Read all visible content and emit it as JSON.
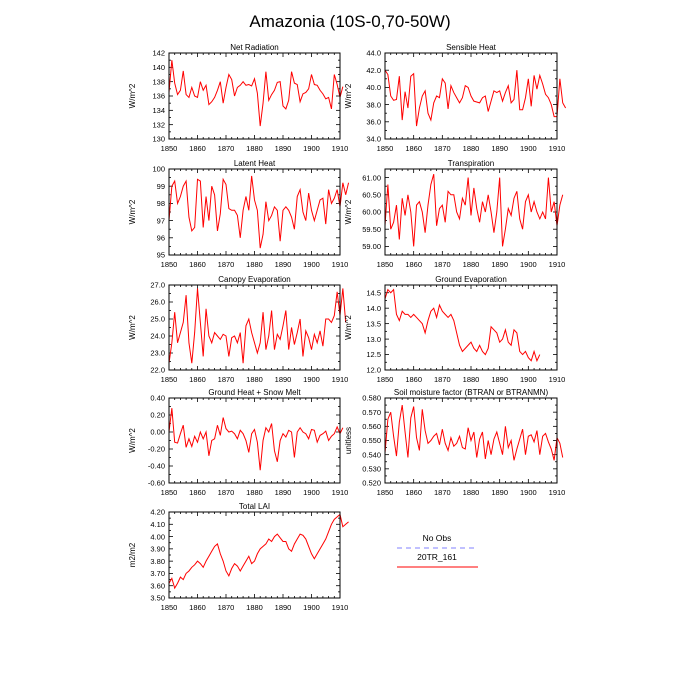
{
  "title": "Amazonia (10S-0,70-50W)",
  "legend": {
    "entries": [
      {
        "label": "No Obs",
        "color": "#8080ff",
        "style": "dashed"
      },
      {
        "label": "20TR_161",
        "color": "#ff0000",
        "style": "solid"
      }
    ]
  },
  "colors": {
    "model": "#ff0000",
    "obs": "#8080ff"
  },
  "chart_data": [
    {
      "type": "line",
      "title": "Net Radiation",
      "ylabel": "W/m^2",
      "xlim": [
        1850,
        1910
      ],
      "ylim": [
        130,
        142
      ],
      "xticks": [
        "1850",
        "1860",
        "1870",
        "1880",
        "1890",
        "1900",
        "1910"
      ],
      "yticks": [
        "130",
        "132",
        "134",
        "136",
        "138",
        "140",
        "142"
      ],
      "series": [
        {
          "values": [
            136.5,
            141.0,
            137.8,
            136.2,
            136.8,
            139.5,
            136.2,
            135.8,
            137.2,
            136.0,
            135.8,
            138.0,
            136.8,
            137.5,
            134.8,
            135.2,
            135.8,
            136.8,
            138.0,
            135.0,
            137.2,
            139.0,
            138.3,
            136.0,
            137.2,
            137.5,
            138.0,
            137.5,
            137.6,
            137.4,
            138.4,
            136.4,
            131.8,
            135.0,
            139.4,
            135.4,
            136.2,
            136.8,
            137.9,
            138.0,
            134.6,
            134.2,
            135.4,
            139.4,
            137.8,
            137.6,
            135.2,
            136.3,
            136.5,
            137.0,
            139.0,
            137.6,
            137.5,
            136.8,
            136.3,
            135.6,
            135.8,
            134.2,
            139.0,
            137.6,
            135.8,
            137.3
          ]
        }
      ]
    },
    {
      "type": "line",
      "title": "Sensible Heat",
      "ylabel": "W/m^2",
      "xlim": [
        1850,
        1910
      ],
      "ylim": [
        34,
        44
      ],
      "xticks": [
        "1850",
        "1860",
        "1870",
        "1880",
        "1890",
        "1900",
        "1910"
      ],
      "yticks": [
        "34.0",
        "36.0",
        "38.0",
        "40.0",
        "42.0",
        "44.0"
      ],
      "series": [
        {
          "values": [
            42.0,
            41.5,
            39.0,
            38.5,
            38.6,
            41.3,
            36.2,
            39.5,
            37.6,
            41.3,
            41.6,
            35.5,
            37.6,
            39.0,
            39.6,
            37.0,
            36.2,
            38.2,
            39.0,
            38.8,
            41.0,
            40.5,
            37.5,
            40.2,
            39.4,
            38.8,
            38.2,
            38.8,
            40.2,
            40.0,
            39.0,
            38.4,
            38.3,
            38.2,
            38.8,
            39.0,
            37.2,
            38.4,
            39.6,
            39.4,
            39.6,
            38.4,
            39.4,
            40.2,
            38.2,
            38.6,
            42.0,
            37.4,
            37.4,
            38.8,
            41.0,
            37.8,
            41.4,
            39.8,
            41.4,
            40.4,
            39.2,
            38.8,
            38.0,
            36.6,
            36.6,
            41.0,
            38.2,
            37.6
          ]
        }
      ]
    },
    {
      "type": "line",
      "title": "Latent Heat",
      "ylabel": "W/m^2",
      "xlim": [
        1850,
        1910
      ],
      "ylim": [
        95,
        100
      ],
      "xticks": [
        "1850",
        "1860",
        "1870",
        "1880",
        "1890",
        "1900",
        "1910"
      ],
      "yticks": [
        "95",
        "96",
        "97",
        "98",
        "99",
        "100"
      ],
      "series": [
        {
          "values": [
            97.0,
            99.0,
            99.3,
            98.0,
            98.4,
            99.0,
            99.3,
            97.2,
            96.4,
            96.6,
            99.4,
            99.3,
            96.6,
            98.4,
            97.0,
            99.0,
            98.5,
            96.4,
            97.4,
            99.4,
            99.1,
            97.7,
            97.6,
            97.6,
            97.3,
            96.0,
            97.6,
            98.4,
            97.6,
            99.6,
            98.2,
            97.6,
            95.4,
            96.2,
            98.1,
            97.0,
            97.3,
            97.8,
            97.6,
            95.8,
            97.6,
            97.8,
            97.6,
            97.2,
            96.5,
            98.4,
            98.8,
            97.5,
            97.0,
            98.6,
            97.6,
            97.0,
            97.6,
            98.2,
            98.3,
            96.8,
            98.8,
            98.0,
            98.3,
            98.8,
            97.8,
            99.2,
            98.5,
            99.2
          ]
        }
      ]
    },
    {
      "type": "line",
      "title": "Transpiration",
      "ylabel": "W/m^2",
      "xlim": [
        1850,
        1910
      ],
      "ylim": [
        58.75,
        61.25
      ],
      "xticks": [
        "1850",
        "1860",
        "1870",
        "1880",
        "1890",
        "1900",
        "1910"
      ],
      "yticks": [
        "59.00",
        "59.50",
        "60.00",
        "60.50",
        "61.00"
      ],
      "series": [
        {
          "values": [
            59.6,
            60.8,
            59.5,
            59.7,
            60.2,
            59.2,
            60.4,
            59.9,
            60.5,
            60.0,
            59.0,
            60.2,
            60.3,
            60.0,
            59.4,
            60.2,
            60.8,
            61.1,
            59.6,
            60.1,
            60.2,
            59.7,
            60.6,
            60.5,
            60.5,
            60.0,
            59.8,
            60.4,
            60.2,
            61.0,
            59.9,
            60.7,
            60.1,
            59.7,
            60.3,
            60.0,
            60.5,
            60.0,
            59.4,
            60.0,
            61.0,
            59.0,
            59.5,
            60.1,
            59.9,
            60.4,
            60.6,
            59.8,
            59.5,
            60.3,
            60.5,
            60.0,
            60.3,
            60.0,
            59.8,
            60.0,
            59.8,
            61.0,
            60.0,
            60.3,
            59.6,
            60.2,
            60.5
          ]
        }
      ]
    },
    {
      "type": "line",
      "title": "Canopy Evaporation",
      "ylabel": "W/m^2",
      "xlim": [
        1850,
        1910
      ],
      "ylim": [
        22,
        27
      ],
      "xticks": [
        "1850",
        "1860",
        "1870",
        "1880",
        "1890",
        "1900",
        "1910"
      ],
      "yticks": [
        "22.0",
        "23.0",
        "24.0",
        "25.0",
        "26.0",
        "27.0"
      ],
      "series": [
        {
          "values": [
            22.4,
            23.6,
            25.4,
            23.6,
            24.2,
            24.8,
            26.4,
            23.6,
            22.4,
            24.2,
            26.8,
            24.8,
            22.8,
            25.6,
            24.0,
            23.6,
            24.2,
            24.0,
            23.8,
            24.1,
            24.0,
            22.8,
            23.9,
            24.0,
            23.6,
            24.2,
            22.4,
            24.6,
            25.0,
            24.2,
            23.6,
            23.0,
            23.6,
            25.4,
            23.2,
            24.0,
            25.5,
            23.2,
            24.1,
            23.8,
            24.6,
            25.5,
            23.2,
            24.5,
            23.5,
            24.2,
            25.0,
            22.8,
            24.3,
            23.9,
            23.2,
            24.1,
            23.6,
            24.3,
            23.4,
            25.0,
            25.0,
            24.8,
            25.2,
            26.6,
            25.2,
            26.8,
            24.8
          ]
        }
      ]
    },
    {
      "type": "line",
      "title": "Ground Evaporation",
      "ylabel": "W/m^2",
      "xlim": [
        1850,
        1910
      ],
      "ylim": [
        12,
        14.75
      ],
      "xticks": [
        "1850",
        "1860",
        "1870",
        "1880",
        "1890",
        "1900",
        "1910"
      ],
      "yticks": [
        "12.0",
        "12.5",
        "13.0",
        "13.5",
        "14.0",
        "14.5"
      ],
      "series": [
        {
          "values": [
            14.3,
            14.6,
            14.5,
            14.6,
            13.8,
            13.6,
            13.9,
            13.8,
            13.8,
            13.7,
            13.8,
            13.7,
            13.6,
            13.5,
            13.2,
            13.6,
            13.9,
            14.0,
            13.7,
            14.1,
            13.9,
            13.8,
            13.7,
            13.8,
            13.6,
            13.2,
            12.8,
            12.6,
            12.7,
            12.8,
            12.9,
            12.7,
            12.6,
            12.8,
            12.6,
            12.5,
            12.7,
            13.4,
            13.3,
            13.2,
            12.9,
            13.0,
            13.3,
            12.9,
            12.8,
            13.3,
            13.2,
            12.6,
            12.5,
            12.6,
            12.4,
            12.3,
            12.6,
            12.3,
            12.5
          ]
        }
      ]
    },
    {
      "type": "line",
      "title": "Ground Heat + Snow Melt",
      "ylabel": "W/m^2",
      "xlim": [
        1850,
        1910
      ],
      "ylim": [
        -0.6,
        0.4
      ],
      "xticks": [
        "1850",
        "1860",
        "1870",
        "1880",
        "1890",
        "1900",
        "1910"
      ],
      "yticks": [
        "-0.60",
        "-0.40",
        "-0.20",
        "0.00",
        "0.20",
        "0.40"
      ],
      "series": [
        {
          "values": [
            0.0,
            0.28,
            -0.12,
            -0.13,
            -0.02,
            0.08,
            -0.18,
            -0.08,
            -0.17,
            -0.05,
            -0.12,
            0.0,
            -0.08,
            0.0,
            -0.28,
            -0.1,
            -0.08,
            0.08,
            -0.04,
            0.17,
            0.04,
            0.0,
            0.01,
            -0.02,
            -0.08,
            0.02,
            -0.02,
            -0.1,
            -0.24,
            -0.02,
            0.03,
            -0.12,
            -0.45,
            -0.1,
            0.05,
            0.0,
            0.1,
            -0.22,
            -0.35,
            -0.1,
            -0.02,
            -0.06,
            0.02,
            0.0,
            -0.3,
            0.0,
            0.05,
            0.0,
            -0.02,
            -0.08,
            0.03,
            0.02,
            -0.12,
            -0.04,
            -0.02,
            0.01,
            -0.1,
            -0.05,
            -0.02,
            0.06,
            -0.02,
            0.05
          ]
        }
      ]
    },
    {
      "type": "line",
      "title": "Soil moisture factor (BTRAN or BTRANMN)",
      "ylabel": "unitless",
      "xlim": [
        1850,
        1910
      ],
      "ylim": [
        0.52,
        0.58
      ],
      "xticks": [
        "1850",
        "1860",
        "1870",
        "1880",
        "1890",
        "1900",
        "1910"
      ],
      "yticks": [
        "0.520",
        "0.530",
        "0.540",
        "0.550",
        "0.560",
        "0.570",
        "0.580"
      ],
      "series": [
        {
          "values": [
            0.541,
            0.565,
            0.57,
            0.553,
            0.539,
            0.563,
            0.575,
            0.556,
            0.538,
            0.566,
            0.574,
            0.552,
            0.543,
            0.572,
            0.557,
            0.548,
            0.55,
            0.553,
            0.555,
            0.547,
            0.558,
            0.548,
            0.543,
            0.552,
            0.546,
            0.548,
            0.553,
            0.545,
            0.544,
            0.559,
            0.55,
            0.556,
            0.538,
            0.551,
            0.556,
            0.537,
            0.55,
            0.54,
            0.551,
            0.556,
            0.548,
            0.54,
            0.56,
            0.545,
            0.55,
            0.536,
            0.544,
            0.551,
            0.558,
            0.54,
            0.553,
            0.554,
            0.549,
            0.557,
            0.54,
            0.553,
            0.555,
            0.549,
            0.544,
            0.536,
            0.552,
            0.548,
            0.538
          ]
        }
      ]
    },
    {
      "type": "line",
      "title": "Total LAI",
      "ylabel": "m2/m2",
      "xlim": [
        1850,
        1910
      ],
      "ylim": [
        3.5,
        4.2
      ],
      "xticks": [
        "1850",
        "1860",
        "1870",
        "1880",
        "1890",
        "1900",
        "1910"
      ],
      "yticks": [
        "3.50",
        "3.60",
        "3.70",
        "3.80",
        "3.90",
        "4.00",
        "4.10",
        "4.20"
      ],
      "series": [
        {
          "values": [
            3.62,
            3.66,
            3.58,
            3.62,
            3.67,
            3.65,
            3.7,
            3.72,
            3.75,
            3.77,
            3.8,
            3.78,
            3.75,
            3.8,
            3.84,
            3.88,
            3.92,
            3.94,
            3.86,
            3.8,
            3.72,
            3.68,
            3.74,
            3.78,
            3.76,
            3.72,
            3.76,
            3.8,
            3.84,
            3.78,
            3.8,
            3.86,
            3.9,
            3.92,
            3.94,
            3.98,
            3.96,
            4.0,
            4.02,
            3.99,
            3.96,
            3.96,
            3.9,
            3.88,
            3.94,
            3.98,
            4.02,
            4.01,
            3.98,
            3.92,
            3.86,
            3.82,
            3.86,
            3.9,
            3.94,
            3.98,
            4.04,
            4.1,
            4.14,
            4.16,
            4.18,
            4.08,
            4.1,
            4.12
          ]
        }
      ]
    }
  ]
}
